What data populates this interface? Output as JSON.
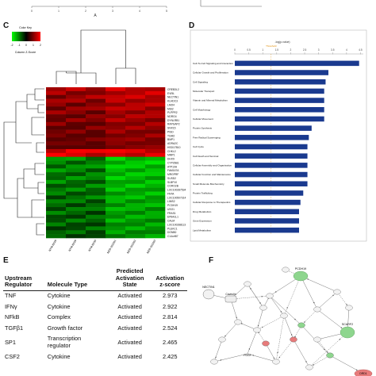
{
  "panels": {
    "c": "C",
    "d": "D",
    "e": "E",
    "f": "F"
  },
  "panel_a": {
    "label": "A",
    "ticks": [
      "0",
      "1",
      "2",
      "3",
      "4",
      "5"
    ]
  },
  "heatmap": {
    "color_key_title": "Color Key",
    "scale_ticks": [
      "-2",
      "-1",
      "0",
      "1",
      "2"
    ],
    "scale_label": "Column Z-Score",
    "genes": [
      "CREB3L2",
      "EVI5L",
      "NECTIN1",
      "KLHDC3",
      "LMO4",
      "MSI2",
      "PLPPR2",
      "NDRG4",
      "DYNLRB1",
      "RAPGAP2",
      "SNX15",
      "PISD",
      "TGM2",
      "BMP1",
      "ADRA2C",
      "HSD17B10",
      "CHKL2",
      "MMP1",
      "DHX9",
      "CYP26B1",
      "ATP10A",
      "FAM167A",
      "MRGPRF",
      "SUSD2",
      "SLBP10",
      "CORO2B",
      "LOC100287534",
      "FNTA",
      "LOC100507314",
      "LIMS2",
      "PCDH19",
      "USO1",
      "FRAS1",
      "EPB41L1",
      "CALM",
      "LOC100288113",
      "PLEKC1",
      "DONB0",
      "C14orf87"
    ],
    "samples": [
      "NTM-B029",
      "NTM-B029",
      "NTM-B030",
      "NEB-202301",
      "NEB-202302",
      "NEB-202303"
    ]
  },
  "chart_data": {
    "type": "bar",
    "orientation": "horizontal",
    "xlabel": "-log(p-value)",
    "ticks": [
      "0",
      "0.5",
      "1",
      "1.5",
      "2",
      "2.5",
      "3",
      "3.5",
      "4",
      "4.5"
    ],
    "threshold_label": "Threshold",
    "xlim": [
      0,
      4.6
    ],
    "categories": [
      "Cell-To-Cell Signaling and Interaction",
      "Cellular Growth and Proliferation",
      "Cell Signaling",
      "Molecular Transport",
      "Vitamin and Mineral Metabolism",
      "Cell Morphology",
      "Cellular Movement",
      "Protein Synthesis",
      "Free Radical Scavenging",
      "Cell Cycle",
      "Cell Death and Survival",
      "Cellular Assembly and Organization",
      "Cellular Function and Maintenance",
      "Small Molecule Biochemistry",
      "Protein Trafficking",
      "Cellular Response to Therapeutics",
      "Drug Metabolism",
      "Gene Expression",
      "Lipid Metabolism"
    ],
    "values": [
      4.45,
      3.35,
      3.25,
      3.2,
      3.2,
      3.2,
      3.2,
      2.75,
      2.65,
      2.6,
      2.6,
      2.6,
      2.6,
      2.6,
      2.45,
      2.35,
      2.3,
      2.3,
      2.3
    ],
    "bar_color": "#1a3a8f"
  },
  "table": {
    "headers": {
      "regulator": "Upstream Regulator",
      "type": "Molecule Type",
      "state": "Predicted Activation State",
      "z": "Activation z-score"
    },
    "rows": [
      {
        "regulator": "TNF",
        "type": "Cytokine",
        "state": "Activated",
        "z": "2.973"
      },
      {
        "regulator": "IFNγ",
        "type": "Cytokine",
        "state": "Activated",
        "z": "2.922"
      },
      {
        "regulator": "NFkB",
        "type": "Complex",
        "state": "Activated",
        "z": "2.814"
      },
      {
        "regulator": "TGFβ1",
        "type": "Growth factor",
        "state": "Activated",
        "z": "2.524"
      },
      {
        "regulator": "SP1",
        "type": "Transcription regulator",
        "state": "Activated",
        "z": "2.465"
      },
      {
        "regulator": "CSF2",
        "type": "Cytokine",
        "state": "Activated",
        "z": "2.425"
      }
    ]
  },
  "network": {
    "nodes": [
      "PCDH19",
      "NECTIN1",
      "Caveolin",
      "SCARF2",
      "DRD1",
      "PDGF"
    ]
  }
}
